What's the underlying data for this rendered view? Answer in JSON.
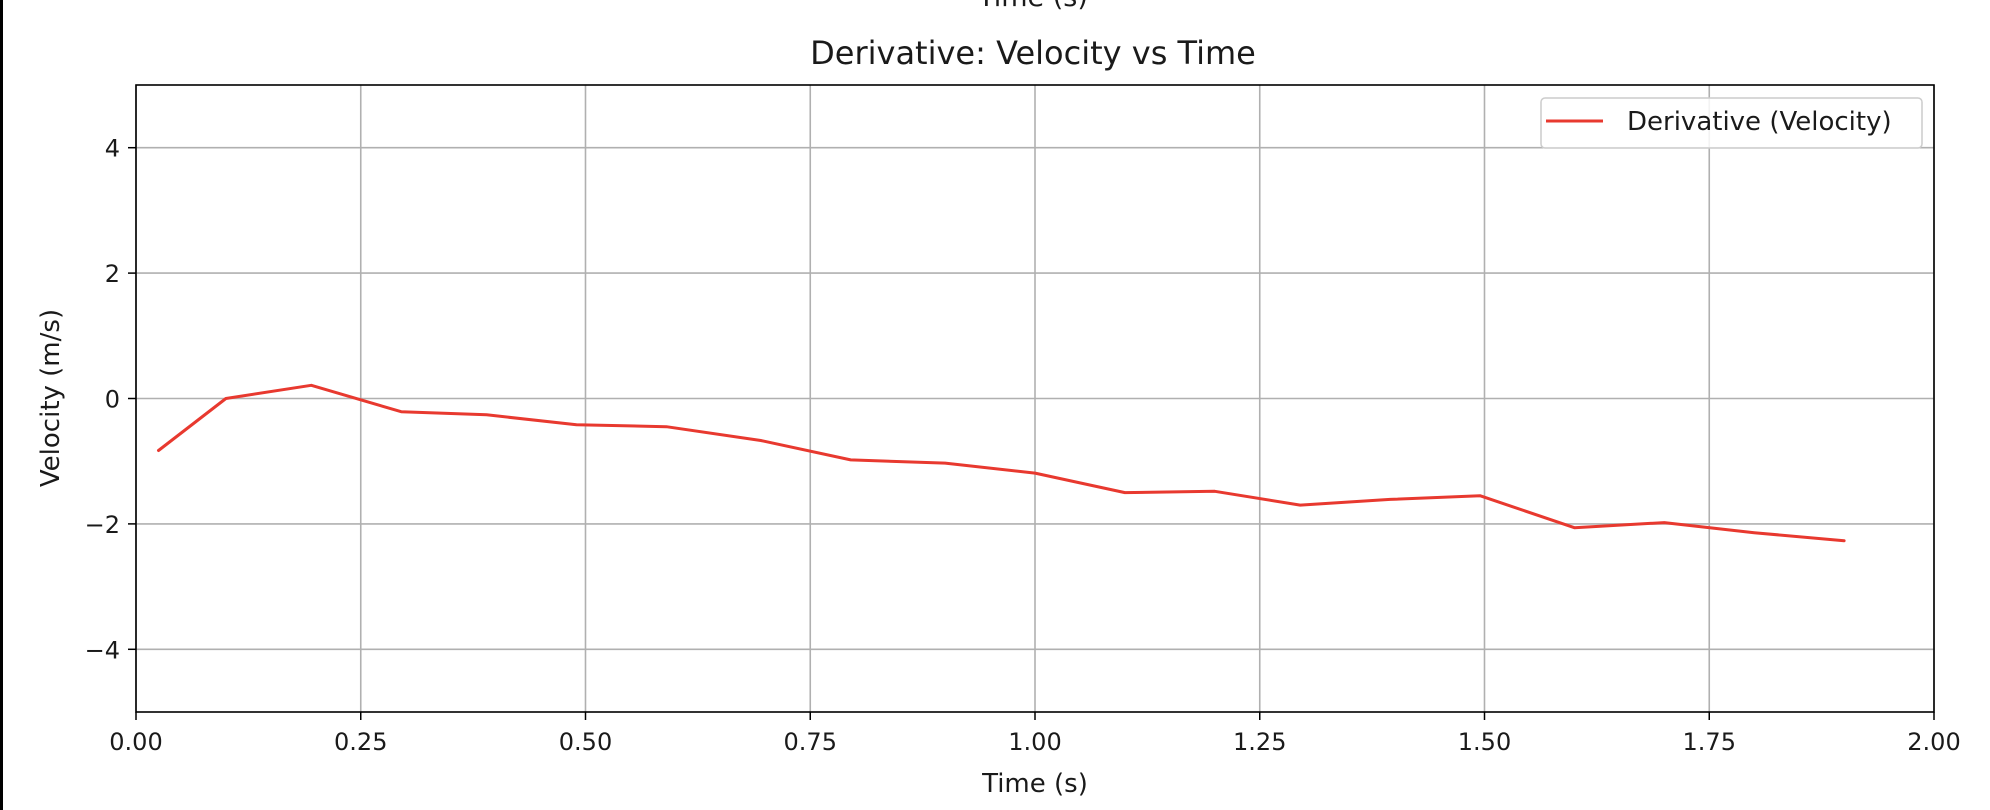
{
  "top_partial_label": "Time (s)",
  "chart_data": {
    "type": "line",
    "title": "Derivative: Velocity vs Time",
    "xlabel": "Time (s)",
    "ylabel": "Velocity (m/s)",
    "xlim": [
      0,
      2
    ],
    "ylim": [
      -5,
      5
    ],
    "xticks": [
      "0.00",
      "0.25",
      "0.50",
      "0.75",
      "1.00",
      "1.25",
      "1.50",
      "1.75",
      "2.00"
    ],
    "yticks": [
      "4",
      "2",
      "0",
      "−2",
      "−4"
    ],
    "grid": true,
    "legend_position": "top-right",
    "series": [
      {
        "name": "Derivative (Velocity)",
        "color": "#e8392f",
        "x": [
          0.025,
          0.1,
          0.195,
          0.295,
          0.39,
          0.49,
          0.59,
          0.695,
          0.795,
          0.9,
          1.0,
          1.1,
          1.2,
          1.295,
          1.395,
          1.495,
          1.6,
          1.7,
          1.8,
          1.9
        ],
        "y": [
          -0.83,
          0.0,
          0.21,
          -0.21,
          -0.26,
          -0.42,
          -0.45,
          -0.67,
          -0.98,
          -1.03,
          -1.19,
          -1.5,
          -1.48,
          -1.7,
          -1.61,
          -1.55,
          -2.06,
          -1.98,
          -2.14,
          -2.27
        ]
      }
    ]
  }
}
